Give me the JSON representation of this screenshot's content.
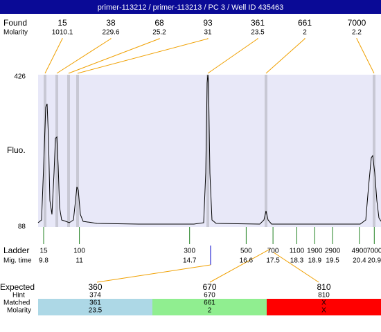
{
  "title": "primer-113212 / primer-113213 / PC 3 / Well ID 435463",
  "found": {
    "label": "Found",
    "molarity_label": "Molarity",
    "peaks": [
      {
        "size": 15,
        "molarity": 1010.1
      },
      {
        "size": 38,
        "molarity": 229.6
      },
      {
        "size": 68,
        "molarity": 25.2
      },
      {
        "size": 93,
        "molarity": 31
      },
      {
        "size": 361,
        "molarity": 23.5
      },
      {
        "size": 661,
        "molarity": 2
      },
      {
        "size": 7000,
        "molarity": 2.2
      }
    ]
  },
  "axis": {
    "label": "Fluo.",
    "top": 426,
    "bottom": 88
  },
  "ladder": {
    "label": "Ladder",
    "time_label": "Mig. time",
    "items": [
      {
        "size": 15,
        "time": 9.8
      },
      {
        "size": 100,
        "time": 11
      },
      {
        "size": 300,
        "time": 14.7
      },
      {
        "size": 500,
        "time": 16.6
      },
      {
        "size": 700,
        "time": 17.5
      },
      {
        "size": 1100,
        "time": 18.3
      },
      {
        "size": 1900,
        "time": 18.9
      },
      {
        "size": 2900,
        "time": 19.5
      },
      {
        "size": 4900,
        "time": 20.4
      },
      {
        "size": 7000,
        "time": 20.9
      }
    ]
  },
  "expected": {
    "labels": {
      "expected": "Expected",
      "hint": "Hint",
      "matched": "Matched",
      "molarity": "Molarity"
    },
    "columns": [
      {
        "expected": 360,
        "hint": 374,
        "matched": 361,
        "molarity": 23.5,
        "color": "#add8e6"
      },
      {
        "expected": 670,
        "hint": 670,
        "matched": 661,
        "molarity": 2,
        "color": "#90ee90"
      },
      {
        "expected": 810,
        "hint": 810,
        "matched": "X",
        "molarity": "X",
        "color": "#ff0000"
      }
    ]
  }
}
